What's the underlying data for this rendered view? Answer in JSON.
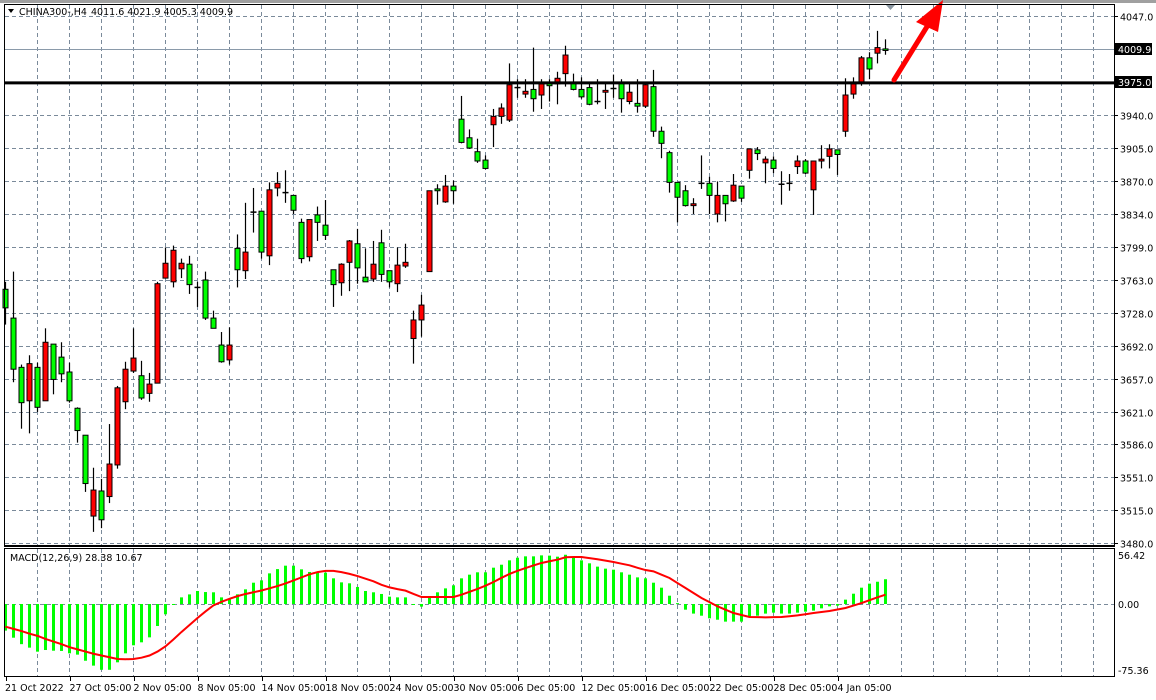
{
  "header": {
    "symbol_timeframe": "CHINA300-,H4",
    "ohlc": "4011.6 4021.9 4005.3 4009.9",
    "dropdown_icon": "triangle-down-icon"
  },
  "colors": {
    "bull_candle": "#ff0000",
    "bear_candle": "#00ff00",
    "histogram": "#00ff00",
    "signal_line": "#ff0000",
    "grid": "#7a8a9a",
    "support_line": "#000000",
    "arrow": "#ff0000"
  },
  "chart_data": [
    {
      "type": "candlestick",
      "title": "CHINA300-,H4",
      "ylim": [
        3480,
        4047
      ],
      "grid": true,
      "y_ticks": [
        "4047.0",
        "3940.0",
        "3905.0",
        "3870.0",
        "3834.0",
        "3799.0",
        "3763.0",
        "3728.0",
        "3692.0",
        "3657.0",
        "3621.0",
        "3586.0",
        "3551.0",
        "3515.0",
        "3480.0"
      ],
      "current_price": "4009.9",
      "horizontal_line": "3975.0",
      "x_ticks": [
        "21 Oct 2022",
        "27 Oct 05:00",
        "2 Nov 05:00",
        "8 Nov 05:00",
        "14 Nov 05:00",
        "18 Nov 05:00",
        "24 Nov 05:00",
        "30 Nov 05:00",
        "6 Dec 05:00",
        "12 Dec 05:00",
        "16 Dec 05:00",
        "22 Dec 05:00",
        "28 Dec 05:00",
        "4 Jan 05:00"
      ],
      "annotation": "red arrow pointing up-right from 3975 line",
      "ohlc_fields": [
        "open",
        "high",
        "low",
        "close"
      ],
      "candles": [
        [
          3753,
          3761,
          3715,
          3733
        ],
        [
          3722,
          3772,
          3653,
          3667
        ],
        [
          3669,
          3672,
          3603,
          3631
        ],
        [
          3633,
          3682,
          3598,
          3673
        ],
        [
          3669,
          3674,
          3621,
          3626
        ],
        [
          3633,
          3711,
          3633,
          3696
        ],
        [
          3694,
          3694,
          3640,
          3656
        ],
        [
          3680,
          3696,
          3653,
          3662
        ],
        [
          3664,
          3674,
          3631,
          3633
        ],
        [
          3625,
          3626,
          3588,
          3601
        ],
        [
          3596,
          3596,
          3535,
          3544
        ],
        [
          3509,
          3561,
          3492,
          3537
        ],
        [
          3536,
          3549,
          3496,
          3505
        ],
        [
          3530,
          3608,
          3523,
          3565
        ],
        [
          3564,
          3649,
          3560,
          3647
        ],
        [
          3632,
          3675,
          3624,
          3667
        ],
        [
          3665,
          3711,
          3663,
          3679
        ],
        [
          3660,
          3676,
          3634,
          3636
        ],
        [
          3641,
          3663,
          3632,
          3651
        ],
        [
          3652,
          3761,
          3652,
          3759
        ],
        [
          3765,
          3798,
          3765,
          3781
        ],
        [
          3761,
          3800,
          3755,
          3795
        ],
        [
          3775,
          3786,
          3765,
          3781
        ],
        [
          3780,
          3789,
          3748,
          3758
        ],
        [
          3754,
          3761,
          3734,
          3755
        ],
        [
          3763,
          3772,
          3720,
          3722
        ],
        [
          3722,
          3730,
          3711,
          3711
        ],
        [
          3693,
          3707,
          3674,
          3675
        ],
        [
          3677,
          3712,
          3672,
          3693
        ],
        [
          3797,
          3812,
          3755,
          3774
        ],
        [
          3773,
          3846,
          3764,
          3793
        ],
        [
          3835,
          3862,
          3814,
          3836
        ],
        [
          3837,
          3837,
          3786,
          3793
        ],
        [
          3789,
          3868,
          3779,
          3860
        ],
        [
          3862,
          3879,
          3853,
          3867
        ],
        [
          3857,
          3881,
          3846,
          3857
        ],
        [
          3854,
          3854,
          3834,
          3838
        ],
        [
          3825,
          3829,
          3781,
          3786
        ],
        [
          3788,
          3828,
          3783,
          3828
        ],
        [
          3833,
          3842,
          3805,
          3825
        ],
        [
          3822,
          3849,
          3806,
          3811
        ],
        [
          3774,
          3774,
          3734,
          3758
        ],
        [
          3760,
          3781,
          3746,
          3780
        ],
        [
          3782,
          3806,
          3751,
          3805
        ],
        [
          3802,
          3818,
          3759,
          3776
        ],
        [
          3766,
          3797,
          3761,
          3761
        ],
        [
          3764,
          3805,
          3761,
          3780
        ],
        [
          3803,
          3817,
          3761,
          3769
        ],
        [
          3773,
          3773,
          3755,
          3761
        ],
        [
          3759,
          3798,
          3750,
          3779
        ],
        [
          3778,
          3802,
          3776,
          3782
        ],
        [
          3700,
          3730,
          3673,
          3720
        ],
        [
          3720,
          3747,
          3702,
          3736
        ],
        [
          3772,
          3859,
          3772,
          3859
        ],
        [
          3861,
          3866,
          3844,
          3859
        ],
        [
          3847,
          3876,
          3846,
          3864
        ],
        [
          3864,
          3870,
          3845,
          3859
        ],
        [
          3936,
          3961,
          3910,
          3911
        ],
        [
          3916,
          3925,
          3904,
          3905
        ],
        [
          3901,
          3915,
          3889,
          3891
        ],
        [
          3892,
          3897,
          3882,
          3883
        ],
        [
          3930,
          3947,
          3906,
          3939
        ],
        [
          3939,
          3953,
          3931,
          3948
        ],
        [
          3935,
          3996,
          3933,
          3973
        ],
        [
          3970,
          3979,
          3959,
          3970
        ],
        [
          3963,
          3979,
          3959,
          3966
        ],
        [
          3968,
          4013,
          3944,
          3958
        ],
        [
          3962,
          3979,
          3947,
          3974
        ],
        [
          3975,
          3979,
          3955,
          3972
        ],
        [
          3974,
          3987,
          3952,
          3980
        ],
        [
          3985,
          4015,
          3971,
          4005
        ],
        [
          3975,
          3985,
          3967,
          3968
        ],
        [
          3968,
          3981,
          3958,
          3960
        ],
        [
          3970,
          3975,
          3951,
          3952
        ],
        [
          3954,
          3979,
          3952,
          3955
        ],
        [
          3965,
          3975,
          3947,
          3967
        ],
        [
          3968,
          3984,
          3959,
          3969
        ],
        [
          3975,
          3979,
          3943,
          3958
        ],
        [
          3955,
          3975,
          3952,
          3965
        ],
        [
          3953,
          3979,
          3943,
          3950
        ],
        [
          3950,
          3975,
          3948,
          3973
        ],
        [
          3971,
          3989,
          3917,
          3923
        ],
        [
          3923,
          3928,
          3894,
          3910
        ],
        [
          3900,
          3902,
          3857,
          3868
        ],
        [
          3868,
          3868,
          3825,
          3852
        ],
        [
          3859,
          3865,
          3842,
          3843
        ],
        [
          3843,
          3851,
          3834,
          3845
        ],
        [
          3867,
          3897,
          3861,
          3867
        ],
        [
          3867,
          3874,
          3834,
          3854
        ],
        [
          3834,
          3869,
          3825,
          3854
        ],
        [
          3854,
          3854,
          3826,
          3845
        ],
        [
          3848,
          3877,
          3847,
          3865
        ],
        [
          3864,
          3864,
          3847,
          3851
        ],
        [
          3881,
          3904,
          3872,
          3904
        ],
        [
          3903,
          3906,
          3892,
          3899
        ],
        [
          3889,
          3896,
          3867,
          3893
        ],
        [
          3892,
          3896,
          3878,
          3883
        ],
        [
          3866,
          3880,
          3844,
          3866
        ],
        [
          3867,
          3877,
          3859,
          3867
        ],
        [
          3885,
          3897,
          3877,
          3891
        ],
        [
          3891,
          3893,
          3877,
          3878
        ],
        [
          3860,
          3891,
          3833,
          3891
        ],
        [
          3891,
          3908,
          3883,
          3893
        ],
        [
          3896,
          3909,
          3883,
          3904
        ],
        [
          3903,
          3903,
          3876,
          3898
        ],
        [
          3923,
          3980,
          3917,
          3962
        ],
        [
          3963,
          3981,
          3958,
          3974
        ],
        [
          3976,
          4004,
          3972,
          4002
        ],
        [
          4002,
          4008,
          3979,
          3990
        ],
        [
          4007,
          4031,
          3996,
          4013
        ],
        [
          4011.6,
          4021.9,
          4005.3,
          4009.9
        ]
      ]
    },
    {
      "type": "bar+line",
      "title": "MACD(12,26,9) 28.38 10.67",
      "ylim": [
        -75.36,
        56.42
      ],
      "y_ticks": [
        "56.42",
        "0.00",
        "-75.36"
      ],
      "grid": true,
      "series": [
        {
          "name": "MACD",
          "kind": "histogram",
          "values": [
            -30.5,
            -38.6,
            -46,
            -50,
            -54.6,
            -52.7,
            -53.5,
            -53.8,
            -56.5,
            -58,
            -65,
            -70.6,
            -76.7,
            -75.6,
            -66.8,
            -56.5,
            -47.3,
            -43.9,
            -38.2,
            -25.2,
            -11.8,
            -1,
            7.6,
            11,
            14.9,
            13.7,
            13.4,
            7.6,
            5.3,
            11.1,
            16.8,
            24.4,
            27.1,
            35.1,
            40,
            43.9,
            43.9,
            39.7,
            36.7,
            35.9,
            35.9,
            29.4,
            24.8,
            23.7,
            19.5,
            14.9,
            13.4,
            11.5,
            8.4,
            7.6,
            7.6,
            0,
            -3,
            6.9,
            13.4,
            17.9,
            21.4,
            29.4,
            33.6,
            36.3,
            36.3,
            41.6,
            45,
            50,
            53,
            54.6,
            54.6,
            55.7,
            55.4,
            54.2,
            56.5,
            53.8,
            50,
            46.6,
            42.8,
            40.5,
            39.3,
            36.3,
            33.6,
            30.5,
            29.4,
            24.4,
            18.7,
            9.5,
            1,
            -6.5,
            -11,
            -13.4,
            -16.4,
            -18,
            -20.2,
            -20.2,
            -20.2,
            -15.3,
            -13.4,
            -11,
            -9.9,
            -11,
            -11,
            -9.9,
            -8.8,
            -7.6,
            -5,
            -2.7,
            -1.9,
            5,
            11.8,
            18.7,
            23.3,
            25.5,
            28.38
          ]
        },
        {
          "name": "Signal",
          "kind": "line",
          "values": [
            -26,
            -28.5,
            -31,
            -34,
            -36.5,
            -40,
            -43,
            -46,
            -49.5,
            -52,
            -54.5,
            -57,
            -59,
            -61,
            -63,
            -63.3,
            -63,
            -61.5,
            -59,
            -54.5,
            -48.5,
            -40.5,
            -32,
            -24,
            -16,
            -8.5,
            -1.5,
            2.5,
            6,
            9,
            11.5,
            13.5,
            15.5,
            18,
            20.5,
            23.5,
            27,
            30.5,
            34,
            36.5,
            38,
            38,
            36.5,
            34.5,
            32,
            29,
            26,
            22,
            19,
            17,
            15.3,
            11.5,
            8,
            8,
            8,
            8,
            8,
            10.7,
            14,
            17.2,
            21,
            25.2,
            30,
            34.4,
            38,
            41.2,
            44.2,
            47,
            49,
            50.8,
            53.5,
            53.8,
            53.8,
            52.5,
            51.2,
            49.7,
            48.1,
            46.2,
            44.3,
            41.5,
            38.9,
            37.4,
            33.6,
            29.8,
            24,
            18.3,
            12.6,
            6.9,
            2.1,
            -2.7,
            -6.5,
            -10.3,
            -12.6,
            -14.9,
            -15.1,
            -15.3,
            -15.1,
            -14.9,
            -14,
            -13,
            -11.7,
            -10.3,
            -9.2,
            -8,
            -6.3,
            -4.6,
            -1.8,
            1.1,
            4.4,
            7.6,
            10.67
          ]
        }
      ]
    }
  ]
}
